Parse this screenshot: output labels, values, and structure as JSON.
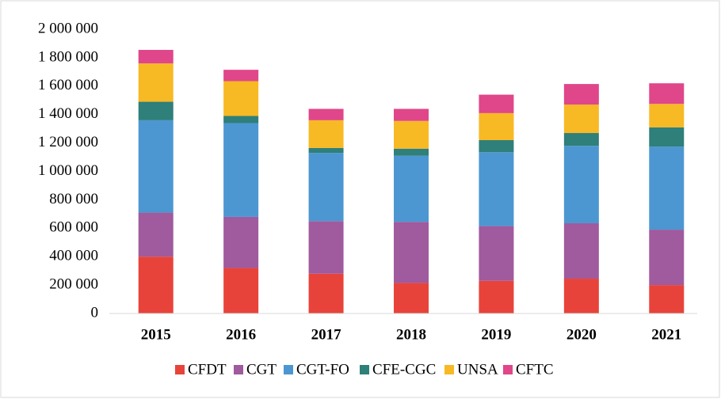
{
  "chart_data": {
    "type": "stacked_bar",
    "categories": [
      "2015",
      "2016",
      "2017",
      "2018",
      "2019",
      "2020",
      "2021"
    ],
    "series": [
      {
        "name": "CFDT",
        "color": "#e8433a",
        "values": [
          400000,
          320000,
          280000,
          215000,
          230000,
          245000,
          200000
        ]
      },
      {
        "name": "CGT",
        "color": "#a05a9e",
        "values": [
          310000,
          360000,
          370000,
          430000,
          385000,
          390000,
          390000
        ]
      },
      {
        "name": "CGT-FO",
        "color": "#4c97d1",
        "values": [
          650000,
          660000,
          480000,
          465000,
          520000,
          545000,
          585000
        ]
      },
      {
        "name": "CFE-CGC",
        "color": "#2f7f7a",
        "values": [
          130000,
          50000,
          35000,
          50000,
          85000,
          90000,
          135000
        ]
      },
      {
        "name": "UNSA",
        "color": "#f7b924",
        "values": [
          270000,
          245000,
          195000,
          195000,
          190000,
          200000,
          165000
        ]
      },
      {
        "name": "CFTC",
        "color": "#e0468a",
        "values": [
          95000,
          80000,
          80000,
          85000,
          130000,
          145000,
          145000
        ]
      }
    ],
    "ylim": [
      0,
      2000000
    ],
    "yticks": [
      0,
      {
        "value": 200000,
        "label": "200 000"
      },
      {
        "value": 400000,
        "label": "400 000"
      },
      {
        "value": 600000,
        "label": "600 000"
      },
      {
        "value": 800000,
        "label": "800 000"
      },
      {
        "value": 1000000,
        "label": "1 000 000"
      },
      {
        "value": 1200000,
        "label": "1 200 000"
      },
      {
        "value": 1400000,
        "label": "1 400 000"
      },
      {
        "value": 1600000,
        "label": "1 600 000"
      },
      {
        "value": 1800000,
        "label": "1 800 000"
      },
      {
        "value": 2000000,
        "label": "2 000 000"
      }
    ],
    "grid": false,
    "legend": "bottom"
  }
}
